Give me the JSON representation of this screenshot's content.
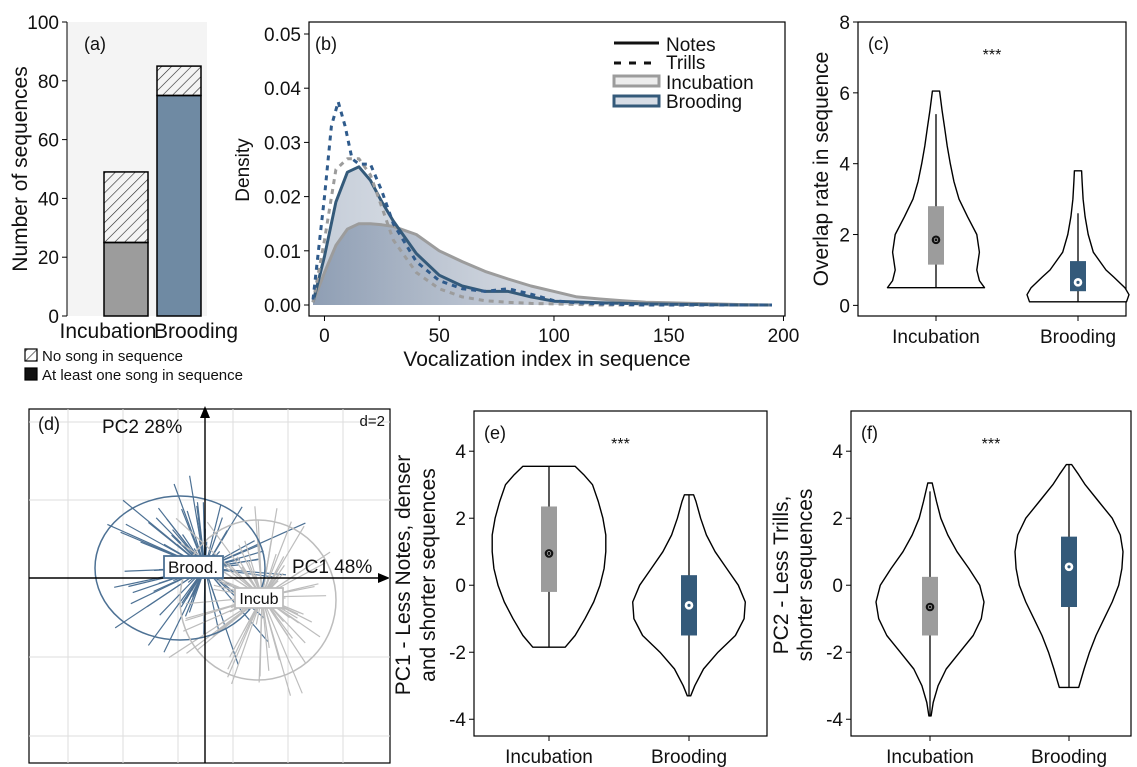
{
  "colors": {
    "incubation": "#9c9c9c",
    "brooding": "#345a7a",
    "brooding_light": "#6f8aa3",
    "black": "#000000"
  },
  "chart_data": [
    {
      "panel": "(a)",
      "type": "bar",
      "ylabel": "Number of sequences",
      "ylim": [
        0,
        100
      ],
      "yticks": [
        "0",
        "20",
        "40",
        "60",
        "80",
        "100"
      ],
      "categories": [
        "Incubation",
        "Brooding"
      ],
      "series": [
        {
          "name": "At least one song in sequence",
          "values": [
            25,
            75
          ]
        },
        {
          "name": "No song in sequence",
          "values": [
            24,
            10
          ]
        }
      ],
      "legend": [
        "No song in sequence",
        "At least one song in sequence"
      ]
    },
    {
      "panel": "(b)",
      "type": "line",
      "xlabel": "Vocalization index in sequence",
      "ylabel": "Density",
      "xlim": [
        -5,
        200
      ],
      "ylim": [
        0,
        0.05
      ],
      "xticks": [
        "0",
        "50",
        "100",
        "150",
        "200"
      ],
      "yticks": [
        "0.00",
        "0.01",
        "0.02",
        "0.03",
        "0.04",
        "0.05"
      ],
      "legend": [
        "Notes",
        "Trills",
        "Incubation",
        "Brooding"
      ],
      "series": [
        {
          "name": "Notes Incubation",
          "x": [
            -5,
            0,
            5,
            10,
            15,
            20,
            25,
            30,
            40,
            50,
            60,
            70,
            80,
            90,
            100,
            110,
            120,
            130,
            140,
            150,
            160,
            170,
            180,
            195
          ],
          "y": [
            0.0005,
            0.006,
            0.011,
            0.014,
            0.015,
            0.015,
            0.0148,
            0.0145,
            0.013,
            0.01,
            0.008,
            0.0062,
            0.0048,
            0.0035,
            0.0025,
            0.0015,
            0.0011,
            0.0008,
            0.0005,
            0.0004,
            0.0003,
            0.0002,
            0.0001,
            0.0
          ]
        },
        {
          "name": "Notes Brooding",
          "x": [
            -5,
            0,
            5,
            10,
            15,
            20,
            25,
            30,
            40,
            50,
            60,
            70,
            80,
            90,
            100,
            120,
            140,
            160,
            180,
            195
          ],
          "y": [
            0.0005,
            0.009,
            0.019,
            0.0245,
            0.0255,
            0.023,
            0.019,
            0.0155,
            0.0095,
            0.0055,
            0.0035,
            0.0025,
            0.0025,
            0.0015,
            0.0007,
            0.0004,
            0.0002,
            0.0001,
            0.0,
            0.0
          ]
        },
        {
          "name": "Trills Incubation",
          "x": [
            -5,
            0,
            5,
            10,
            15,
            20,
            25,
            30,
            40,
            50,
            60,
            70,
            80,
            90,
            100,
            120,
            140,
            160,
            180,
            195
          ],
          "y": [
            0.0005,
            0.012,
            0.025,
            0.027,
            0.027,
            0.024,
            0.018,
            0.012,
            0.006,
            0.003,
            0.0015,
            0.0008,
            0.0005,
            0.0003,
            0.0002,
            0.0,
            0.0,
            0.0,
            0.0,
            0.0
          ]
        },
        {
          "name": "Trills Brooding",
          "x": [
            -5,
            0,
            3,
            6,
            9,
            12,
            15,
            20,
            25,
            30,
            40,
            50,
            60,
            70,
            80,
            90,
            100,
            110,
            120,
            140,
            160,
            180,
            195
          ],
          "y": [
            0.001,
            0.02,
            0.033,
            0.0375,
            0.033,
            0.027,
            0.026,
            0.026,
            0.021,
            0.015,
            0.008,
            0.0045,
            0.003,
            0.0025,
            0.003,
            0.002,
            0.0008,
            0.0004,
            0.0002,
            0.0,
            0.0,
            0.0,
            0.0
          ]
        }
      ]
    },
    {
      "panel": "(c)",
      "type": "violin",
      "ylabel": "Overlap rate in sequence",
      "ylim": [
        -0.3,
        8
      ],
      "yticks": [
        "0",
        "2",
        "4",
        "6",
        "8"
      ],
      "categories": [
        "Incubation",
        "Brooding"
      ],
      "annotation": "***",
      "groups": [
        {
          "name": "Incubation",
          "min": 0.5,
          "max": 6.05,
          "q1": 1.15,
          "median": 1.85,
          "q3": 2.8,
          "wlo": 0.5,
          "whi": 5.4,
          "profile": [
            [
              0.5,
              0.95
            ],
            [
              0.7,
              0.85
            ],
            [
              1.0,
              0.8
            ],
            [
              1.5,
              0.85
            ],
            [
              2.0,
              0.8
            ],
            [
              2.5,
              0.62
            ],
            [
              3.0,
              0.45
            ],
            [
              3.5,
              0.35
            ],
            [
              4.0,
              0.28
            ],
            [
              4.5,
              0.22
            ],
            [
              5.0,
              0.17
            ],
            [
              5.5,
              0.12
            ],
            [
              6.05,
              0.07
            ]
          ]
        },
        {
          "name": "Brooding",
          "min": 0.1,
          "max": 3.8,
          "q1": 0.4,
          "median": 0.65,
          "q3": 1.25,
          "wlo": 0.1,
          "whi": 2.6,
          "profile": [
            [
              0.1,
              0.95
            ],
            [
              0.3,
              1.0
            ],
            [
              0.5,
              0.92
            ],
            [
              0.8,
              0.7
            ],
            [
              1.0,
              0.55
            ],
            [
              1.5,
              0.3
            ],
            [
              2.0,
              0.2
            ],
            [
              2.5,
              0.14
            ],
            [
              3.0,
              0.1
            ],
            [
              3.5,
              0.08
            ],
            [
              3.8,
              0.07
            ]
          ]
        }
      ]
    },
    {
      "panel": "(d)",
      "type": "scatter",
      "annotations": [
        "PC2 28%",
        "PC1 48%",
        "d=2",
        "Brood.",
        "Incub"
      ]
    },
    {
      "panel": "(e)",
      "type": "violin",
      "ylabel": "PC1 - Less Notes, denser and shorter sequences",
      "ylim": [
        -4.5,
        5.2
      ],
      "yticks": [
        "-4",
        "-2",
        "0",
        "2",
        "4"
      ],
      "categories": [
        "Incubation",
        "Brooding"
      ],
      "annotation": "***",
      "groups": [
        {
          "name": "Incubation",
          "min": -1.85,
          "max": 3.55,
          "q1": -0.2,
          "median": 0.95,
          "q3": 2.35,
          "wlo": -1.85,
          "whi": 3.55,
          "profile": [
            [
              -1.85,
              0.28
            ],
            [
              -1.5,
              0.45
            ],
            [
              -1.0,
              0.62
            ],
            [
              -0.5,
              0.77
            ],
            [
              0.0,
              0.88
            ],
            [
              0.5,
              0.95
            ],
            [
              1.0,
              0.98
            ],
            [
              1.5,
              0.98
            ],
            [
              2.0,
              0.93
            ],
            [
              2.5,
              0.85
            ],
            [
              3.0,
              0.75
            ],
            [
              3.3,
              0.6
            ],
            [
              3.55,
              0.45
            ]
          ]
        },
        {
          "name": "Brooding",
          "min": -3.3,
          "max": 2.7,
          "q1": -1.5,
          "median": -0.6,
          "q3": 0.3,
          "wlo": -3.3,
          "whi": 2.7,
          "profile": [
            [
              -3.3,
              0.03
            ],
            [
              -3.0,
              0.1
            ],
            [
              -2.5,
              0.25
            ],
            [
              -2.0,
              0.5
            ],
            [
              -1.5,
              0.8
            ],
            [
              -1.0,
              0.95
            ],
            [
              -0.5,
              0.97
            ],
            [
              0.0,
              0.85
            ],
            [
              0.5,
              0.65
            ],
            [
              1.0,
              0.45
            ],
            [
              1.5,
              0.3
            ],
            [
              2.0,
              0.2
            ],
            [
              2.5,
              0.12
            ],
            [
              2.7,
              0.08
            ]
          ]
        }
      ]
    },
    {
      "panel": "(f)",
      "type": "violin",
      "ylabel": "PC2 - Less Trills, shorter sequences",
      "ylim": [
        -4.5,
        5.2
      ],
      "yticks": [
        "-4",
        "-2",
        "0",
        "2",
        "4"
      ],
      "categories": [
        "Incubation",
        "Brooding"
      ],
      "annotation": "***",
      "groups": [
        {
          "name": "Incubation",
          "min": -3.9,
          "max": 3.05,
          "q1": -1.5,
          "median": -0.65,
          "q3": 0.25,
          "wlo": -3.9,
          "whi": 2.8,
          "profile": [
            [
              -3.9,
              0.02
            ],
            [
              -3.5,
              0.06
            ],
            [
              -3.0,
              0.15
            ],
            [
              -2.5,
              0.3
            ],
            [
              -2.0,
              0.55
            ],
            [
              -1.5,
              0.8
            ],
            [
              -1.0,
              0.95
            ],
            [
              -0.5,
              1.0
            ],
            [
              0.0,
              0.92
            ],
            [
              0.5,
              0.72
            ],
            [
              1.0,
              0.5
            ],
            [
              1.5,
              0.33
            ],
            [
              2.0,
              0.2
            ],
            [
              2.5,
              0.12
            ],
            [
              3.05,
              0.04
            ]
          ]
        },
        {
          "name": "Brooding",
          "min": -3.05,
          "max": 3.6,
          "q1": -0.65,
          "median": 0.55,
          "q3": 1.45,
          "wlo": -3.05,
          "whi": 3.6,
          "profile": [
            [
              -3.05,
              0.18
            ],
            [
              -2.5,
              0.28
            ],
            [
              -2.0,
              0.38
            ],
            [
              -1.5,
              0.5
            ],
            [
              -1.0,
              0.65
            ],
            [
              -0.5,
              0.8
            ],
            [
              0.0,
              0.92
            ],
            [
              0.5,
              0.98
            ],
            [
              1.0,
              1.0
            ],
            [
              1.5,
              0.95
            ],
            [
              2.0,
              0.8
            ],
            [
              2.5,
              0.55
            ],
            [
              3.0,
              0.3
            ],
            [
              3.3,
              0.18
            ],
            [
              3.6,
              0.05
            ]
          ]
        }
      ]
    }
  ]
}
